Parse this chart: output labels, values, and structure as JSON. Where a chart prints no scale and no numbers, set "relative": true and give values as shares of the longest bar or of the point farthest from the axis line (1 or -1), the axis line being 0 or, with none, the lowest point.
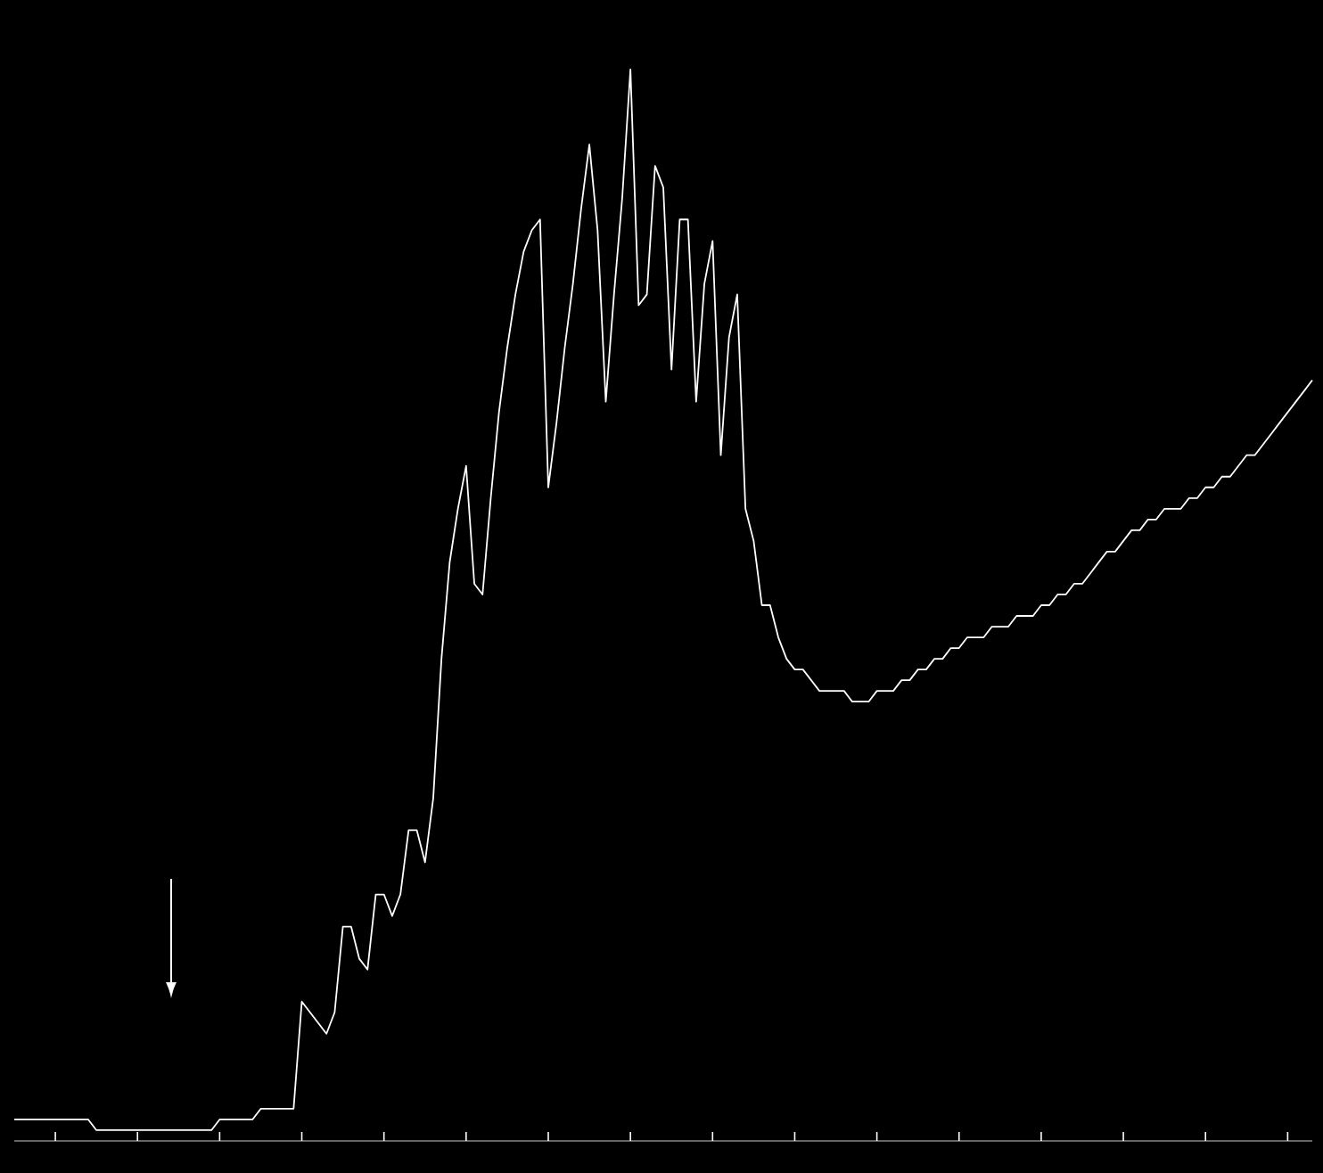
{
  "chart_data": {
    "type": "line",
    "relative": true,
    "color": "#ffffff",
    "categories": [
      null,
      null,
      null,
      null,
      null,
      null,
      null,
      null,
      null,
      null,
      null,
      null,
      null,
      null,
      null,
      null,
      null,
      null,
      null,
      null,
      null,
      null,
      null,
      null,
      null,
      null,
      null,
      null,
      null,
      null,
      null,
      null,
      null,
      null,
      null,
      null,
      null,
      null,
      null,
      null,
      null,
      null,
      null,
      null,
      null,
      null,
      null,
      null,
      null,
      null,
      null,
      null,
      null,
      null,
      null,
      null,
      null,
      null,
      null,
      null,
      null,
      null,
      null,
      null,
      null,
      null,
      null,
      null,
      null,
      null,
      null,
      null,
      null,
      null,
      null,
      null,
      null,
      null,
      null,
      null,
      null,
      null,
      null,
      null,
      null,
      null,
      null,
      null,
      null,
      null,
      null,
      null,
      null,
      null,
      null,
      null,
      null,
      null,
      null,
      null,
      null,
      null,
      null,
      null,
      null,
      null,
      null,
      null,
      null,
      null,
      null,
      null,
      null,
      null,
      null,
      null,
      null,
      null,
      null,
      null,
      null,
      null,
      null,
      null,
      null,
      null,
      null,
      null,
      null,
      null,
      null,
      null,
      null,
      null,
      null,
      null,
      null,
      null,
      null,
      null,
      null,
      null,
      null,
      null,
      null,
      null,
      null,
      null,
      null,
      null,
      null,
      null,
      null,
      null,
      null,
      null,
      null,
      null,
      null
    ],
    "values": [
      0.02,
      0.02,
      0.02,
      0.02,
      0.02,
      0.02,
      0.02,
      0.02,
      0.02,
      0.02,
      0.01,
      0.01,
      0.01,
      0.01,
      0.01,
      0.01,
      0.01,
      0.01,
      0.01,
      0.01,
      0.01,
      0.01,
      0.01,
      0.01,
      0.01,
      0.02,
      0.02,
      0.02,
      0.02,
      0.02,
      0.03,
      0.03,
      0.03,
      0.03,
      0.03,
      0.13,
      0.12,
      0.11,
      0.1,
      0.12,
      0.2,
      0.2,
      0.17,
      0.16,
      0.23,
      0.23,
      0.21,
      0.23,
      0.29,
      0.29,
      0.26,
      0.32,
      0.45,
      0.54,
      0.59,
      0.63,
      0.52,
      0.51,
      0.6,
      0.68,
      0.74,
      0.79,
      0.83,
      0.85,
      0.86,
      0.61,
      0.67,
      0.74,
      0.8,
      0.87,
      0.93,
      0.85,
      0.69,
      0.79,
      0.88,
      1.0,
      0.78,
      0.79,
      0.91,
      0.89,
      0.72,
      0.86,
      0.86,
      0.69,
      0.8,
      0.84,
      0.64,
      0.75,
      0.79,
      0.59,
      0.56,
      0.5,
      0.5,
      0.47,
      0.45,
      0.44,
      0.44,
      0.43,
      0.42,
      0.42,
      0.42,
      0.42,
      0.41,
      0.41,
      0.41,
      0.42,
      0.42,
      0.42,
      0.43,
      0.43,
      0.44,
      0.44,
      0.45,
      0.45,
      0.46,
      0.46,
      0.47,
      0.47,
      0.47,
      0.48,
      0.48,
      0.48,
      0.49,
      0.49,
      0.49,
      0.5,
      0.5,
      0.51,
      0.51,
      0.52,
      0.52,
      0.53,
      0.54,
      0.55,
      0.55,
      0.56,
      0.57,
      0.57,
      0.58,
      0.58,
      0.59,
      0.59,
      0.59,
      0.6,
      0.6,
      0.61,
      0.61,
      0.62,
      0.62,
      0.63,
      0.64,
      0.64,
      0.65,
      0.66,
      0.67,
      0.68,
      0.69,
      0.7,
      0.71
    ]
  }
}
